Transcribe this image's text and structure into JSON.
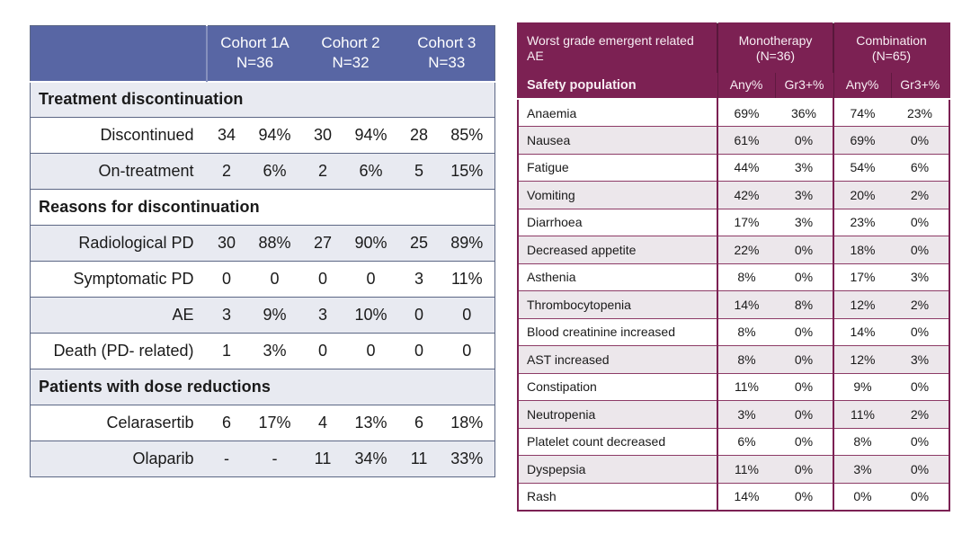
{
  "page": {
    "background": "#ffffff"
  },
  "left_table": {
    "accent_color": "#5866a4",
    "row_alt_color": "#e8eaf1",
    "border_color": "#5c6785",
    "columns": [
      {
        "label": "Cohort 1A",
        "n": "N=36"
      },
      {
        "label": "Cohort 2",
        "n": "N=32"
      },
      {
        "label": "Cohort 3",
        "n": "N=33"
      }
    ],
    "sections": [
      {
        "title": "Treatment discontinuation",
        "rows": [
          {
            "label": "Discontinued",
            "values": [
              "34",
              "94%",
              "30",
              "94%",
              "28",
              "85%"
            ]
          },
          {
            "label": "On-treatment",
            "values": [
              "2",
              "6%",
              "2",
              "6%",
              "5",
              "15%"
            ]
          }
        ]
      },
      {
        "title": "Reasons for discontinuation",
        "rows": [
          {
            "label": "Radiological PD",
            "values": [
              "30",
              "88%",
              "27",
              "90%",
              "25",
              "89%"
            ]
          },
          {
            "label": "Symptomatic PD",
            "values": [
              "0",
              "0",
              "0",
              "0",
              "3",
              "11%"
            ]
          },
          {
            "label": "AE",
            "values": [
              "3",
              "9%",
              "3",
              "10%",
              "0",
              "0"
            ]
          },
          {
            "label": "Death (PD- related)",
            "values": [
              "1",
              "3%",
              "0",
              "0",
              "0",
              "0"
            ]
          }
        ]
      },
      {
        "title": "Patients with dose reductions",
        "rows": [
          {
            "label": "Celarasertib",
            "values": [
              "6",
              "17%",
              "4",
              "13%",
              "6",
              "18%"
            ]
          },
          {
            "label": "Olaparib",
            "values": [
              "-",
              "-",
              "11",
              "34%",
              "11",
              "33%"
            ]
          }
        ]
      }
    ]
  },
  "right_table": {
    "accent_color": "#7c2153",
    "row_alt_color": "#ece7eb",
    "header": {
      "title": "Worst grade emergent related AE",
      "groups": [
        {
          "label": "Monotherapy",
          "n": "(N=36)"
        },
        {
          "label": "Combination",
          "n": "(N=65)"
        }
      ],
      "subheader_label": "Safety population",
      "subheader_cols": [
        "Any%",
        "Gr3+%",
        "Any%",
        "Gr3+%"
      ]
    },
    "rows": [
      {
        "label": "Anaemia",
        "values": [
          "69%",
          "36%",
          "74%",
          "23%"
        ]
      },
      {
        "label": "Nausea",
        "values": [
          "61%",
          "0%",
          "69%",
          "0%"
        ]
      },
      {
        "label": "Fatigue",
        "values": [
          "44%",
          "3%",
          "54%",
          "6%"
        ]
      },
      {
        "label": "Vomiting",
        "values": [
          "42%",
          "3%",
          "20%",
          "2%"
        ]
      },
      {
        "label": "Diarrhoea",
        "values": [
          "17%",
          "3%",
          "23%",
          "0%"
        ]
      },
      {
        "label": "Decreased appetite",
        "values": [
          "22%",
          "0%",
          "18%",
          "0%"
        ]
      },
      {
        "label": "Asthenia",
        "values": [
          "8%",
          "0%",
          "17%",
          "3%"
        ]
      },
      {
        "label": "Thrombocytopenia",
        "values": [
          "14%",
          "8%",
          "12%",
          "2%"
        ]
      },
      {
        "label": "Blood creatinine increased",
        "values": [
          "8%",
          "0%",
          "14%",
          "0%"
        ]
      },
      {
        "label": "AST increased",
        "values": [
          "8%",
          "0%",
          "12%",
          "3%"
        ]
      },
      {
        "label": "Constipation",
        "values": [
          "11%",
          "0%",
          "9%",
          "0%"
        ]
      },
      {
        "label": "Neutropenia",
        "values": [
          "3%",
          "0%",
          "11%",
          "2%"
        ]
      },
      {
        "label": "Platelet count decreased",
        "values": [
          "6%",
          "0%",
          "8%",
          "0%"
        ]
      },
      {
        "label": "Dyspepsia",
        "values": [
          "11%",
          "0%",
          "3%",
          "0%"
        ]
      },
      {
        "label": "Rash",
        "values": [
          "14%",
          "0%",
          "0%",
          "0%"
        ]
      }
    ]
  }
}
